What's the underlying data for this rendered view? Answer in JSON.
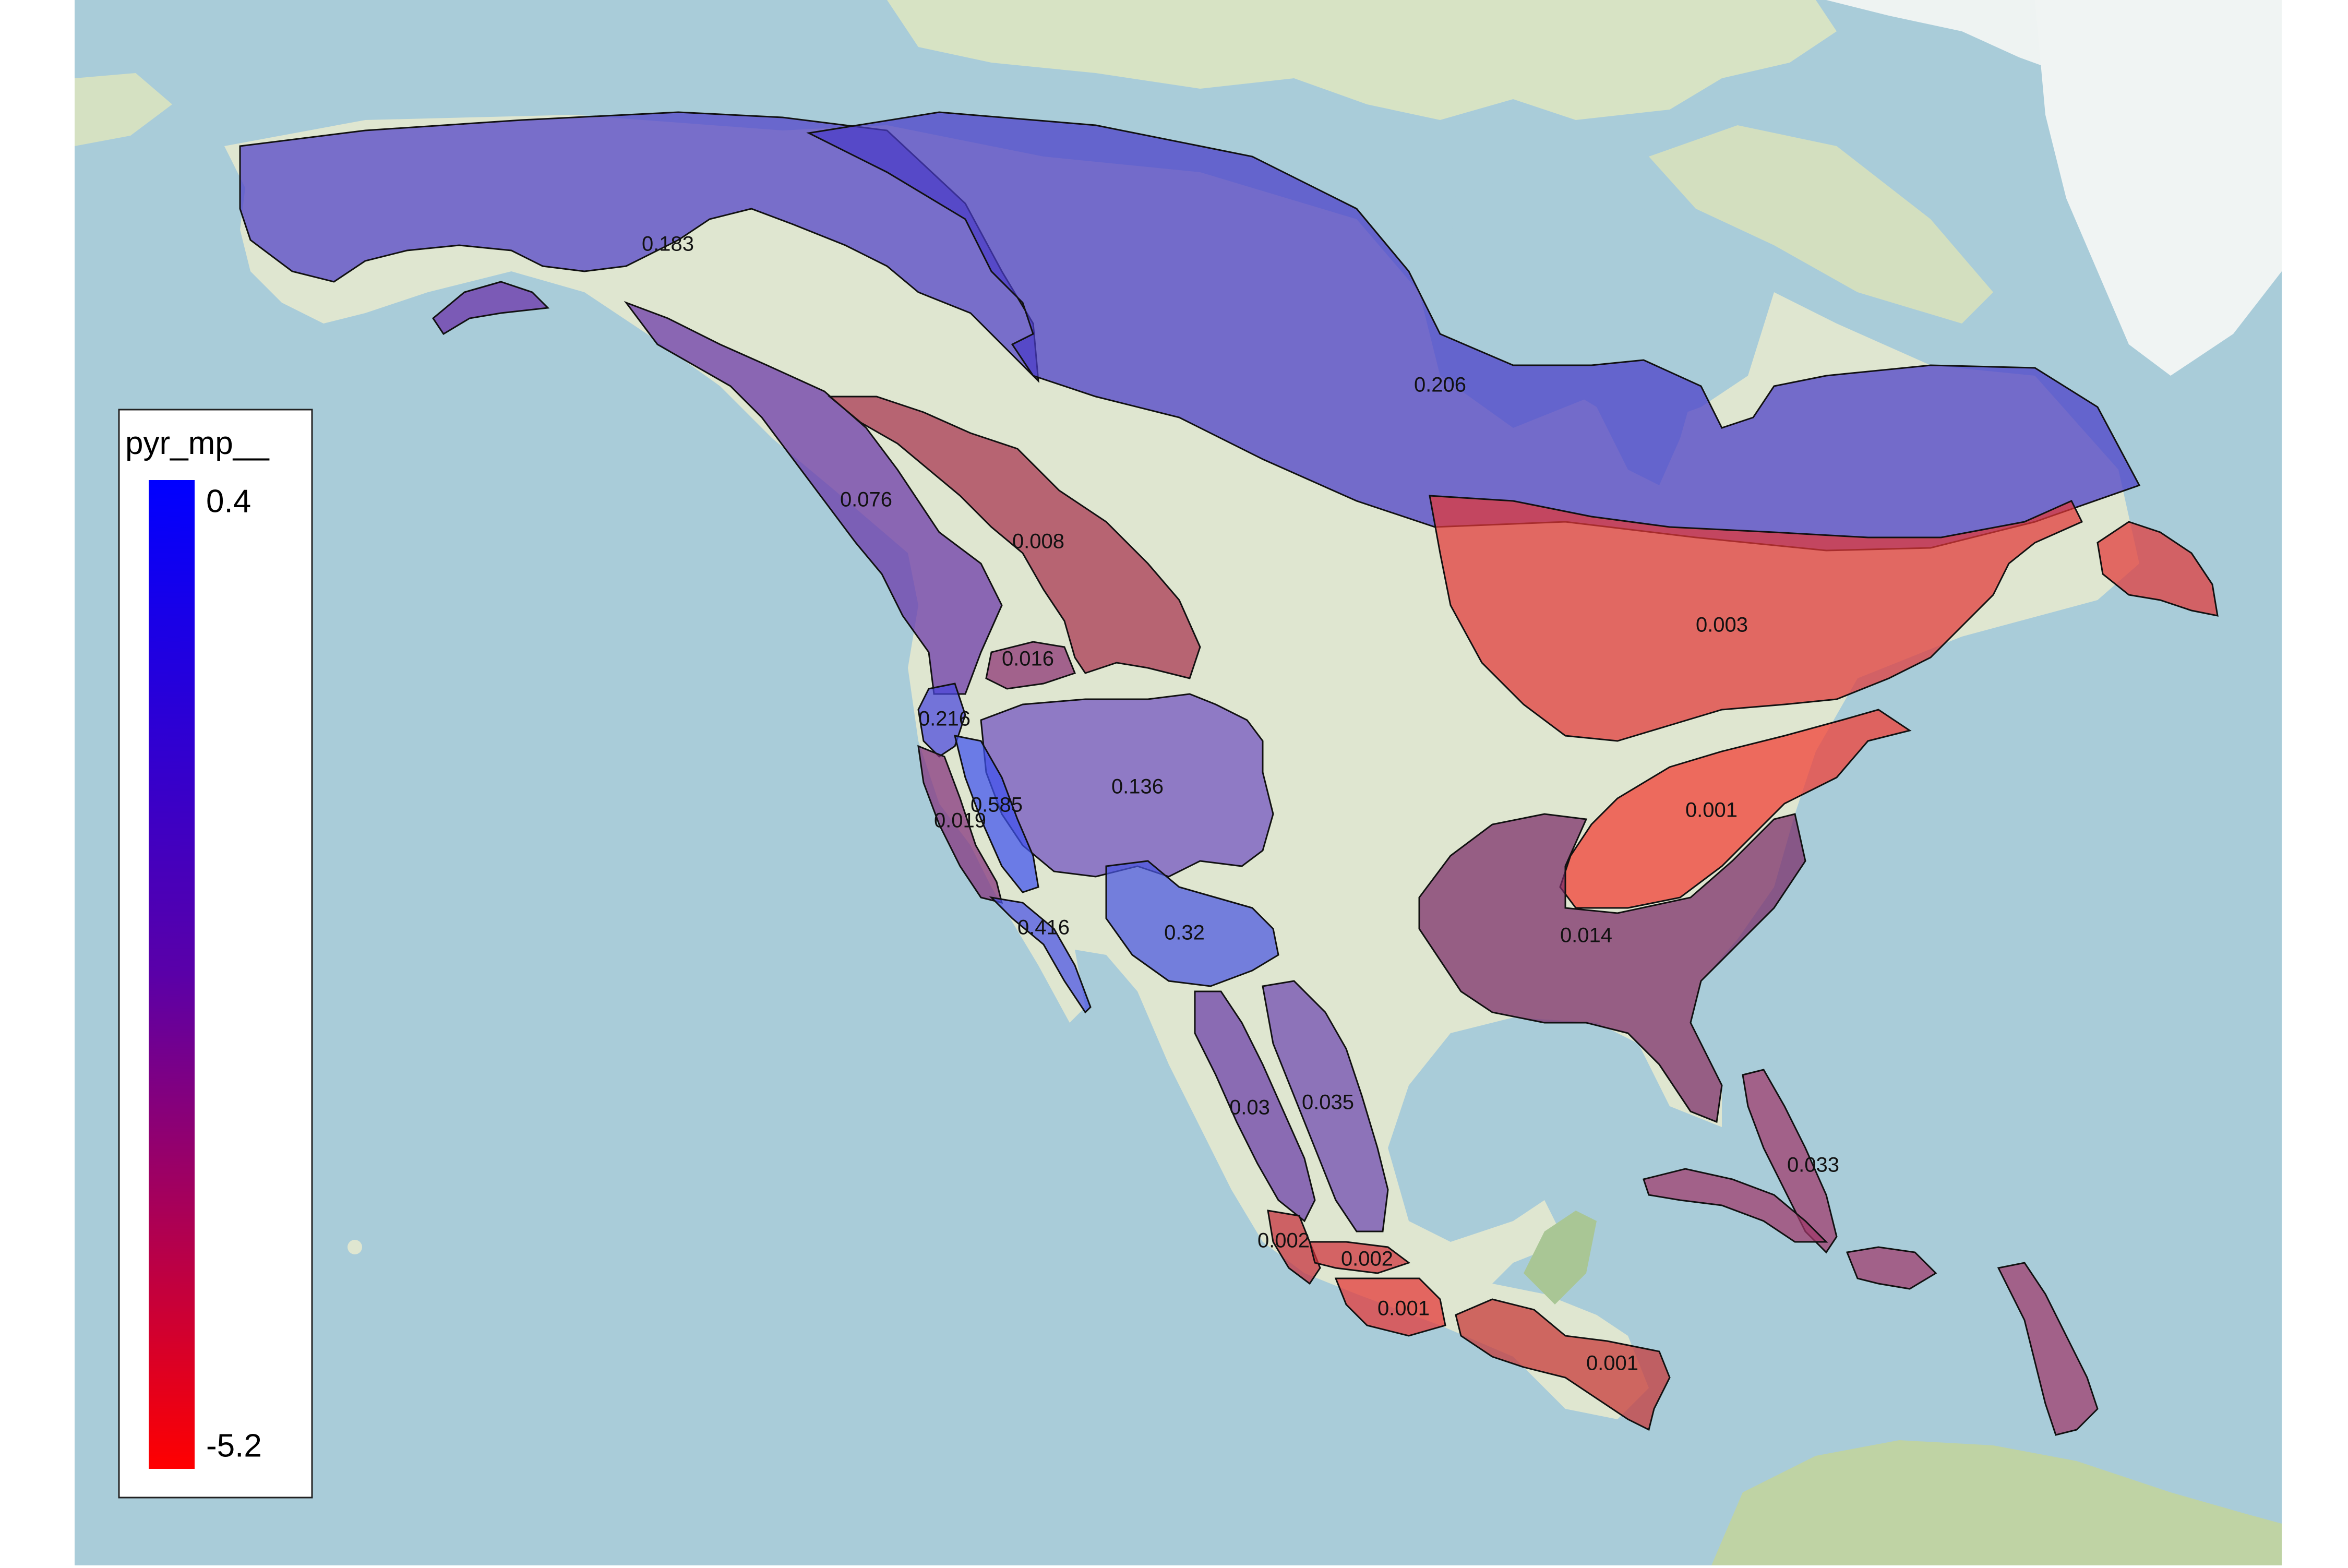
{
  "legend": {
    "title": "pyr_mp__",
    "max_label": "0.4",
    "min_label": "-5.2",
    "max_value": 0.4,
    "min_value": -5.2,
    "color_high": "#0000ff",
    "color_low": "#ff0000"
  },
  "colors": {
    "ocean": "#a9ccd9",
    "land": "#dfe6d0",
    "land_green": "#bfd3a4",
    "ice": "#f2f5f5",
    "outline": "#111111"
  },
  "regions": [
    {
      "id": "alaska-yukon",
      "label": "0.183",
      "value": 0.183,
      "color": "#5040c8"
    },
    {
      "id": "boreal-canada",
      "label": "0.206",
      "value": 0.206,
      "color": "#4a3cc8"
    },
    {
      "id": "aleutian-peninsula",
      "label": "",
      "value": 0.08,
      "color": "#6a2ea8"
    },
    {
      "id": "pacific-northwest",
      "label": "0.076",
      "value": 0.076,
      "color": "#6a34a8"
    },
    {
      "id": "northern-rockies",
      "label": "0.008",
      "value": 0.008,
      "color": "#a8324e"
    },
    {
      "id": "eastern-canada",
      "label": "0.003",
      "value": 0.003,
      "color": "#e23838"
    },
    {
      "id": "great-basin-small",
      "label": "0.016",
      "value": 0.016,
      "color": "#8a2f72"
    },
    {
      "id": "sierra-north",
      "label": "0.216",
      "value": 0.216,
      "color": "#4a46dc"
    },
    {
      "id": "intermountain",
      "label": "0.136",
      "value": 0.136,
      "color": "#7050c0"
    },
    {
      "id": "california-coast",
      "label": "0.019",
      "value": 0.019,
      "color": "#84307c"
    },
    {
      "id": "sierra-south",
      "label": "0.585",
      "value": 0.585,
      "color": "#3e52ee"
    },
    {
      "id": "baja",
      "label": "0.416",
      "value": 0.416,
      "color": "#4a52e4"
    },
    {
      "id": "southwest",
      "label": "0.32",
      "value": 0.32,
      "color": "#4a56e0"
    },
    {
      "id": "northeast-us",
      "label": "0.001",
      "value": 0.001,
      "color": "#f23a30"
    },
    {
      "id": "southeast-us",
      "label": "0.014",
      "value": 0.014,
      "color": "#7a2a66"
    },
    {
      "id": "sierra-madre-occidental",
      "label": "0.03",
      "value": 0.03,
      "color": "#6a3ca8"
    },
    {
      "id": "sierra-madre-oriental",
      "label": "0.035",
      "value": 0.035,
      "color": "#6e46b0"
    },
    {
      "id": "caribbean-bahamas",
      "label": "0.033",
      "value": 0.033,
      "color": "#a0386a"
    },
    {
      "id": "jalisco",
      "label": "0.002",
      "value": 0.002,
      "color": "#c62e3a"
    },
    {
      "id": "transvolcanic",
      "label": "0.002",
      "value": 0.002,
      "color": "#d0303a"
    },
    {
      "id": "oaxaca",
      "label": "0.001",
      "value": 0.001,
      "color": "#e43434"
    },
    {
      "id": "central-america",
      "label": "0.001",
      "value": 0.001,
      "color": "#c83434"
    },
    {
      "id": "cuba",
      "label": "",
      "value": 0.03,
      "color": "#a0386a"
    },
    {
      "id": "hispaniola",
      "label": "",
      "value": 0.03,
      "color": "#a0386a"
    },
    {
      "id": "lesser-antilles",
      "label": "",
      "value": 0.03,
      "color": "#a0386a"
    },
    {
      "id": "newfoundland",
      "label": "",
      "value": 0.003,
      "color": "#e23838"
    }
  ]
}
